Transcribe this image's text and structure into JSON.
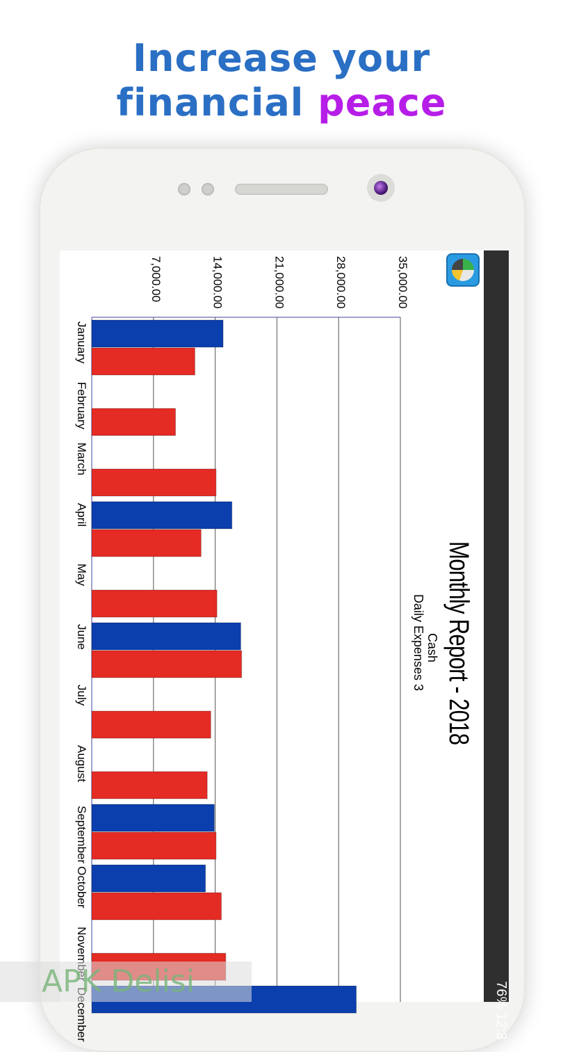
{
  "headline": {
    "line1": "Increase your",
    "line2_prefix": "financial",
    "line2_accent": "peace"
  },
  "status_bar": {
    "text": "76% 12:3"
  },
  "chart_data": {
    "type": "bar",
    "title": "Monthly Report - 2018",
    "subtitle_lines": [
      "Cash",
      "Daily Expenses 3"
    ],
    "categories": [
      "January",
      "February",
      "March",
      "April",
      "May",
      "June",
      "July",
      "August",
      "September",
      "October",
      "November",
      "December"
    ],
    "tick_labels": [
      "7,000.00",
      "14,000.00",
      "21,000.00",
      "28,000.00",
      "35,000.00"
    ],
    "ylim": [
      0,
      35000
    ],
    "series": [
      {
        "color": "#0b3fae",
        "values": [
          14900,
          null,
          null,
          15900,
          null,
          16900,
          null,
          null,
          13900,
          12900,
          null,
          30000
        ]
      },
      {
        "color": "#e42b24",
        "values": [
          11700,
          9500,
          14100,
          12400,
          14200,
          17000,
          13500,
          13100,
          14100,
          14700,
          15200,
          null
        ]
      }
    ],
    "grid": true
  },
  "watermark": {
    "text": "APK Delisi"
  }
}
